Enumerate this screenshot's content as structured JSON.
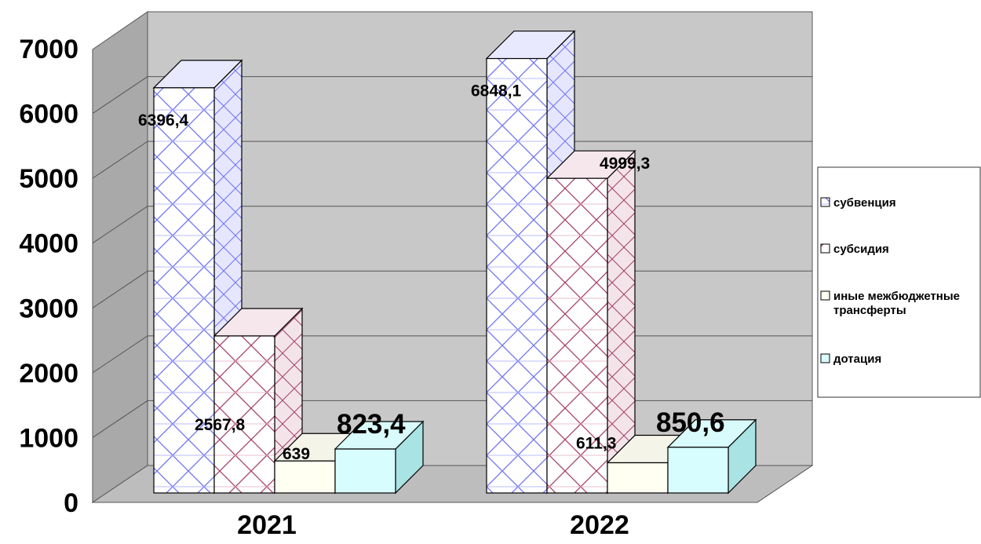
{
  "chart_data": {
    "type": "bar",
    "categories": [
      "2021",
      "2022"
    ],
    "series": [
      {
        "name": "субвенция",
        "values": [
          6396.4,
          6848.1
        ],
        "labels": [
          "6396,4",
          "6848,1"
        ],
        "color": "#bfc7ff",
        "pattern": "cross-blue"
      },
      {
        "name": "субсидия",
        "values": [
          2567.8,
          4999.3
        ],
        "labels": [
          "2567,8",
          "4999,3"
        ],
        "color": "#b05a78",
        "pattern": "cross-red"
      },
      {
        "name": "иные межбюджетные трансферты",
        "values": [
          639,
          611.3
        ],
        "labels": [
          "639",
          "611,3"
        ],
        "color": "#fffff2",
        "pattern": "none"
      },
      {
        "name": "дотация",
        "values": [
          823.4,
          850.6
        ],
        "labels": [
          "823,4",
          "850,6"
        ],
        "color": "#d8fdff",
        "pattern": "none"
      }
    ],
    "yticks": [
      "0",
      "1000",
      "2000",
      "3000",
      "4000",
      "5000",
      "6000",
      "7000"
    ],
    "ylim": [
      0,
      7000
    ],
    "grid": true,
    "legend": "right",
    "title": "",
    "xlabel": "",
    "ylabel": ""
  }
}
